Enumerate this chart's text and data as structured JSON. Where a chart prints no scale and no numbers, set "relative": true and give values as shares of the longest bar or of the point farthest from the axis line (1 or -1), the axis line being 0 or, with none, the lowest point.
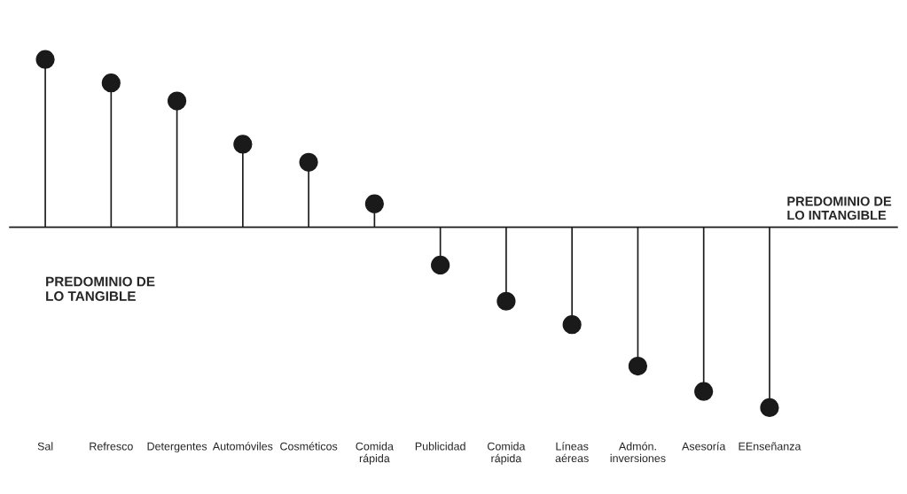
{
  "chart_data": {
    "type": "lollipop",
    "relative": true,
    "marker": "circle",
    "color": "#1a1a1a",
    "categories": [
      "Sal",
      "Refresco",
      "Detergentes",
      "Automóviles",
      "Cosméticos",
      "Comida\nrápida",
      "Publicidad",
      "Comida\nrápida",
      "Líneas\naéreas",
      "Admón.\ninversiones",
      "Asesoría",
      "EEnseñanza"
    ],
    "values": [
      0.93,
      0.8,
      0.7,
      0.46,
      0.36,
      0.13,
      -0.21,
      -0.41,
      -0.54,
      -0.77,
      -0.91,
      -1
    ],
    "annotations": [
      "PREDOMINIO DE\nLO TANGIBLE",
      "PREDOMINIO DE\nLO INTANGIBLE"
    ]
  }
}
